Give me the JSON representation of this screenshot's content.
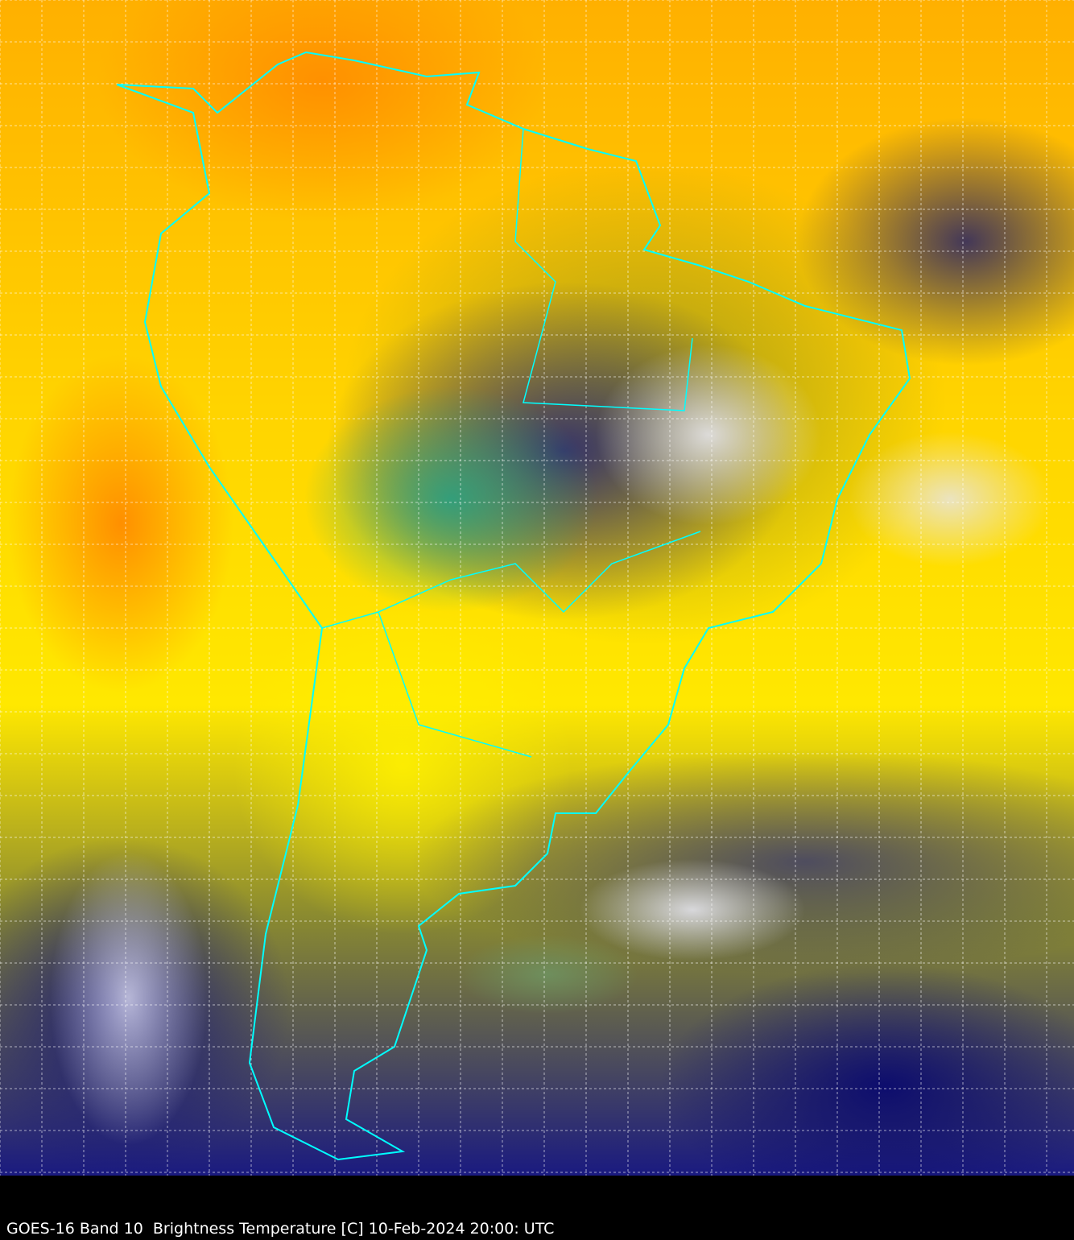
{
  "caption": "GOES-16 Band 10  Brightness Temperature [C] 10-Feb-2024 20:00: UTC",
  "colors": {
    "coastline": "#00ffff",
    "grid": "#ffffff",
    "background": "#000000"
  },
  "map": {
    "region": "South America",
    "graticule": true
  }
}
